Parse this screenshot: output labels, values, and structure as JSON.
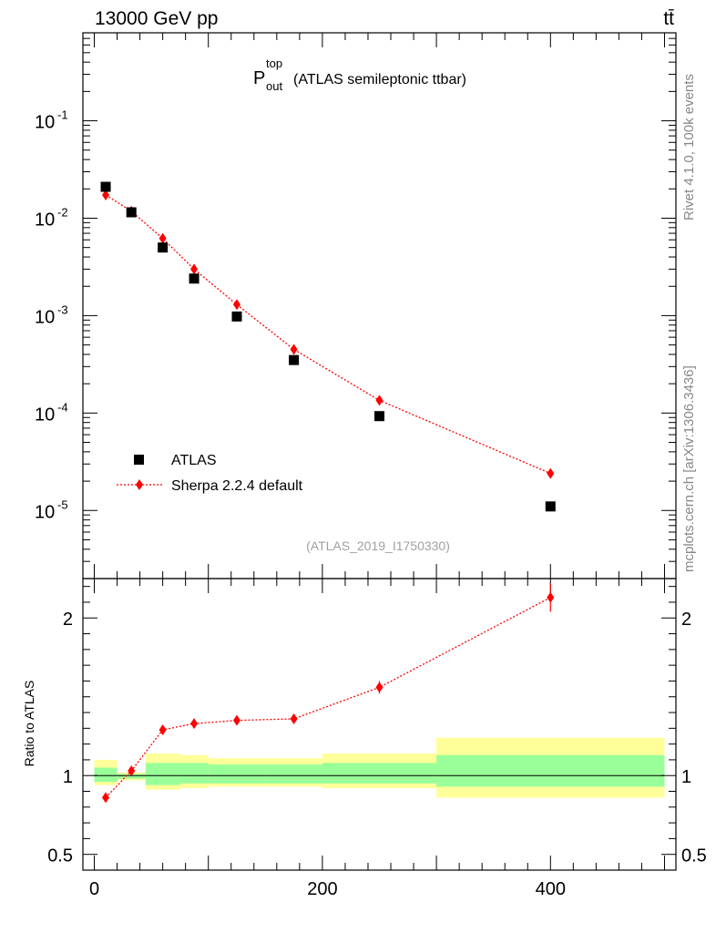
{
  "header": {
    "energy_label": "13000 GeV pp",
    "process_label": "tt̄"
  },
  "side_labels": {
    "rivet": "Rivet 4.1.0,  100k events",
    "mcplots": "mcplots.cern.ch [arXiv:1306.3436]"
  },
  "chart_data": [
    {
      "type": "scatter",
      "panel": "main",
      "title_main": "P",
      "title_sup": "top",
      "title_sub": "out",
      "title_rest": "(ATLAS semileptonic ttbar)",
      "analysis_id": "(ATLAS_2019_I1750330)",
      "yscale": "log",
      "ylim": [
        2e-06,
        0.8
      ],
      "xlim": [
        -10,
        510
      ],
      "y_ticks": [
        {
          "exp": "-1",
          "value": 0.1
        },
        {
          "exp": "-2",
          "value": 0.01
        },
        {
          "exp": "-3",
          "value": 0.001
        },
        {
          "exp": "-4",
          "value": 0.0001
        },
        {
          "exp": "-5",
          "value": 1e-05
        }
      ],
      "legend": {
        "position": "bottom-left",
        "entries": [
          "ATLAS",
          "Sherpa 2.2.4 default"
        ]
      },
      "series": [
        {
          "name": "ATLAS",
          "marker": "square",
          "color": "#000000",
          "x": [
            10,
            32.5,
            60,
            87.5,
            125,
            175,
            250,
            400
          ],
          "y": [
            0.021,
            0.0115,
            0.005,
            0.0024,
            0.00098,
            0.00035,
            9.3e-05,
            1.1e-05
          ]
        },
        {
          "name": "Sherpa 2.2.4 default",
          "marker": "diamond",
          "color": "#ff0000",
          "line": "dotted",
          "x": [
            10,
            32.5,
            60,
            87.5,
            125,
            175,
            250,
            400
          ],
          "y": [
            0.0173,
            0.0118,
            0.0062,
            0.003,
            0.0013,
            0.00045,
            0.000135,
            2.4e-05
          ]
        }
      ]
    },
    {
      "type": "scatter",
      "panel": "ratio",
      "ylabel": "Ratio to ATLAS",
      "xlim": [
        -10,
        510
      ],
      "ylim": [
        0.4,
        2.25
      ],
      "y_ticks": [
        "0.5",
        "1",
        "2"
      ],
      "x_ticks": [
        "0",
        "200",
        "400"
      ],
      "bands": [
        {
          "x0": 0,
          "x1": 20,
          "inner": [
            0.96,
            1.05
          ],
          "outer": [
            0.94,
            1.1
          ]
        },
        {
          "x0": 20,
          "x1": 45,
          "inner": [
            0.98,
            1.01
          ],
          "outer": [
            0.97,
            1.02
          ]
        },
        {
          "x0": 45,
          "x1": 75,
          "inner": [
            0.94,
            1.08
          ],
          "outer": [
            0.91,
            1.14
          ]
        },
        {
          "x0": 75,
          "x1": 100,
          "inner": [
            0.95,
            1.08
          ],
          "outer": [
            0.92,
            1.13
          ]
        },
        {
          "x0": 100,
          "x1": 150,
          "inner": [
            0.95,
            1.07
          ],
          "outer": [
            0.93,
            1.11
          ]
        },
        {
          "x0": 150,
          "x1": 200,
          "inner": [
            0.95,
            1.07
          ],
          "outer": [
            0.93,
            1.11
          ]
        },
        {
          "x0": 200,
          "x1": 300,
          "inner": [
            0.95,
            1.08
          ],
          "outer": [
            0.92,
            1.14
          ]
        },
        {
          "x0": 300,
          "x1": 500,
          "inner": [
            0.93,
            1.13
          ],
          "outer": [
            0.86,
            1.24
          ]
        }
      ],
      "series": [
        {
          "name": "Sherpa 2.2.4 default",
          "marker": "diamond",
          "color": "#ff0000",
          "x": [
            10,
            32.5,
            60,
            87.5,
            125,
            175,
            250,
            400
          ],
          "y": [
            0.86,
            1.03,
            1.29,
            1.33,
            1.35,
            1.36,
            1.56,
            2.13
          ],
          "err": [
            0.015,
            0.015,
            0.02,
            0.02,
            0.025,
            0.03,
            0.04,
            0.09
          ]
        }
      ]
    }
  ]
}
